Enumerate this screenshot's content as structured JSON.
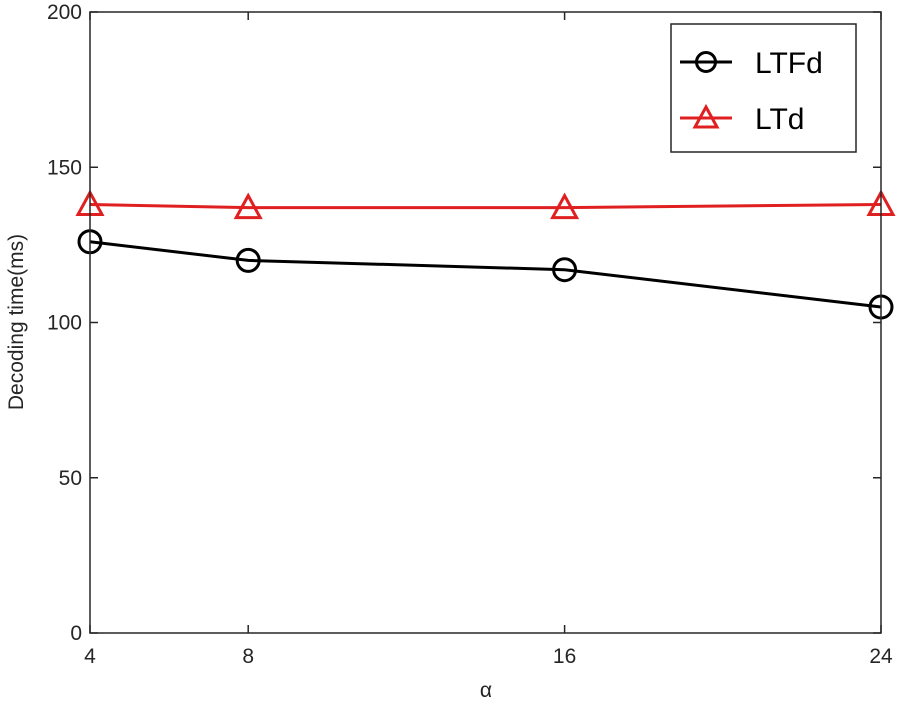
{
  "chart_data": {
    "type": "line",
    "xlabel": "α",
    "ylabel": "Decoding time(ms)",
    "x": [
      4,
      8,
      16,
      24
    ],
    "xticks": [
      "4",
      "8",
      "16",
      "24"
    ],
    "xlim": [
      4,
      24
    ],
    "yticks": [
      "0",
      "50",
      "100",
      "150",
      "200"
    ],
    "ylim": [
      0,
      200
    ],
    "legend_position": "top-right",
    "series": [
      {
        "name": "LTFd",
        "color": "#000000",
        "marker": "circle",
        "values": [
          126,
          120,
          117,
          105
        ]
      },
      {
        "name": "LTd",
        "color": "#e02020",
        "marker": "triangle",
        "values": [
          138,
          137,
          137,
          138
        ]
      }
    ]
  }
}
